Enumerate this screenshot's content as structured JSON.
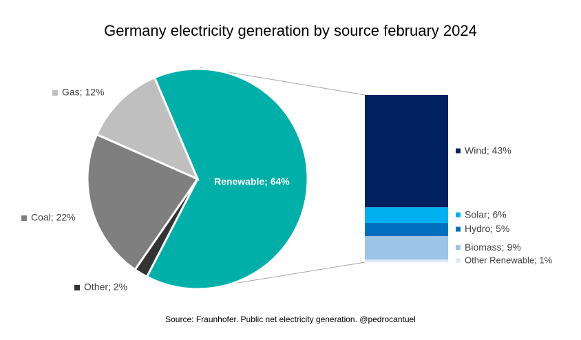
{
  "chart_data": [
    {
      "type": "pie",
      "title": "Germany electricity generation by source february 2024",
      "source": "Source: Fraunhofer. Public net electricity generation. @pedrocantuel",
      "values": [
        64,
        2,
        22,
        12
      ],
      "value_labels": [
        "Renewable; 64%",
        "Other; 2%",
        "Coal; 22%",
        "Gas; 12%"
      ],
      "colors": [
        "#00b0a8",
        "#333333",
        "#7f7f7f",
        "#bfbfbf"
      ]
    },
    {
      "type": "bar",
      "stacked": true,
      "values": [
        43,
        6,
        5,
        9,
        1
      ],
      "value_labels": [
        "Wind; 43%",
        "Solar; 6%",
        "Hydro; 5%",
        "Biomass; 9%",
        "Other Renewable; 1%"
      ],
      "colors": [
        "#002060",
        "#00b0f0",
        "#0070c0",
        "#9dc3e6",
        "#deebf7"
      ]
    }
  ]
}
